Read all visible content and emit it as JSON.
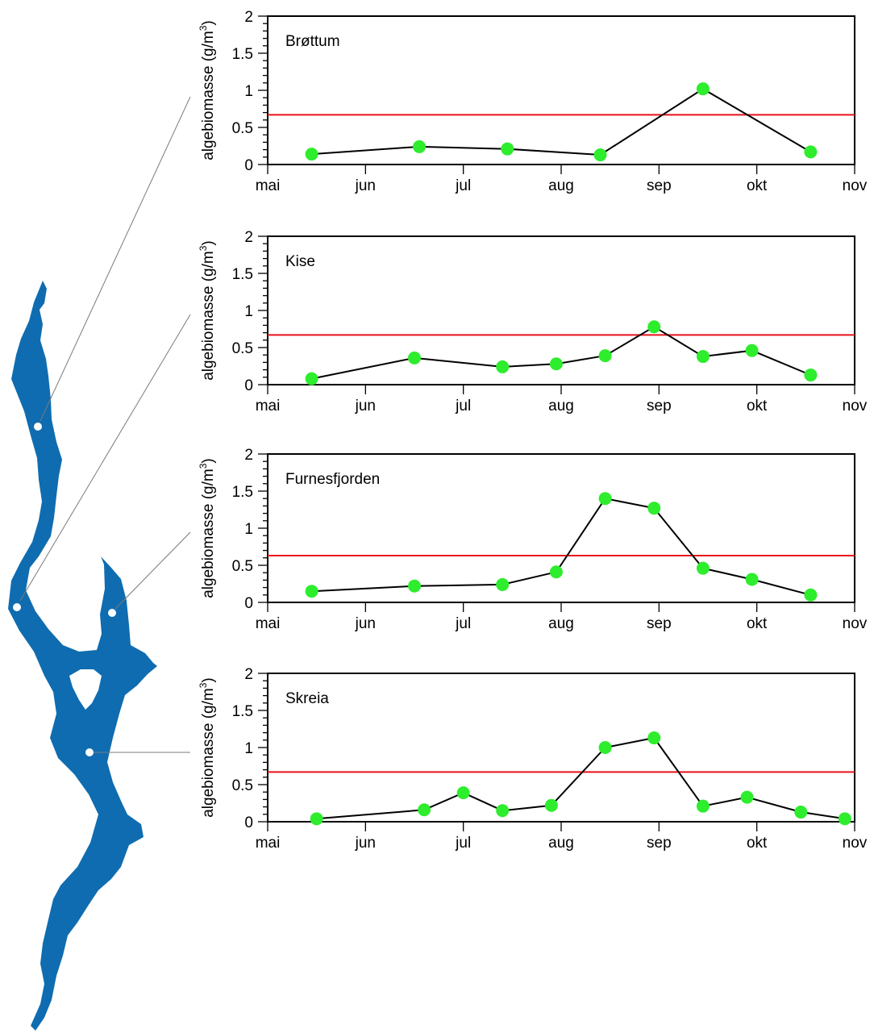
{
  "chart_data": [
    {
      "type": "line",
      "title": "Brøttum",
      "ylabel": "algebiomasse (g/m3)",
      "ylabel_parts": {
        "before": "algebiomasse (g/m",
        "sup": "3",
        "after": ")"
      },
      "xticks": [
        "mai",
        "jun",
        "jul",
        "aug",
        "sep",
        "okt",
        "nov"
      ],
      "xlim": [
        0,
        6
      ],
      "ylim": [
        0,
        2
      ],
      "yticks": [
        "0",
        "0.5",
        "1",
        "1.5",
        "2"
      ],
      "reference_line": 0.67,
      "reference_color": "#e8111b",
      "marker_color": "#2ded2d",
      "series": [
        {
          "x": [
            0.45,
            1.55,
            2.45,
            3.4,
            4.45,
            5.55
          ],
          "y": [
            0.14,
            0.24,
            0.21,
            0.13,
            1.02,
            0.17
          ]
        }
      ]
    },
    {
      "type": "line",
      "title": "Kise",
      "ylabel": "algebiomasse (g/m3)",
      "ylabel_parts": {
        "before": "algebiomasse (g/m",
        "sup": "3",
        "after": ")"
      },
      "xticks": [
        "mai",
        "jun",
        "jul",
        "aug",
        "sep",
        "okt",
        "nov"
      ],
      "xlim": [
        0,
        6
      ],
      "ylim": [
        0,
        2
      ],
      "yticks": [
        "0",
        "0.5",
        "1",
        "1.5",
        "2"
      ],
      "reference_line": 0.67,
      "reference_color": "#e8111b",
      "marker_color": "#2ded2d",
      "series": [
        {
          "x": [
            0.45,
            1.5,
            2.4,
            2.95,
            3.45,
            3.95,
            4.45,
            4.95,
            5.55
          ],
          "y": [
            0.08,
            0.36,
            0.24,
            0.28,
            0.39,
            0.78,
            0.38,
            0.46,
            0.13
          ]
        }
      ]
    },
    {
      "type": "line",
      "title": "Furnesfjorden",
      "ylabel": "algebiomasse (g/m3)",
      "ylabel_parts": {
        "before": "algebiomasse (g/m",
        "sup": "3",
        "after": ")"
      },
      "xticks": [
        "mai",
        "jun",
        "jul",
        "aug",
        "sep",
        "okt",
        "nov"
      ],
      "xlim": [
        0,
        6
      ],
      "ylim": [
        0,
        2
      ],
      "yticks": [
        "0",
        "0.5",
        "1",
        "1.5",
        "2"
      ],
      "reference_line": 0.63,
      "reference_color": "#e8111b",
      "marker_color": "#2ded2d",
      "series": [
        {
          "x": [
            0.45,
            1.5,
            2.4,
            2.95,
            3.45,
            3.95,
            4.45,
            4.95,
            5.55
          ],
          "y": [
            0.15,
            0.22,
            0.24,
            0.41,
            1.4,
            1.27,
            0.46,
            0.31,
            0.1
          ]
        }
      ]
    },
    {
      "type": "line",
      "title": "Skreia",
      "ylabel": "algebiomasse (g/m3)",
      "ylabel_parts": {
        "before": "algebiomasse (g/m",
        "sup": "3",
        "after": ")"
      },
      "xticks": [
        "mai",
        "jun",
        "jul",
        "aug",
        "sep",
        "okt",
        "nov"
      ],
      "xlim": [
        0,
        6
      ],
      "ylim": [
        0,
        2
      ],
      "yticks": [
        "0",
        "0.5",
        "1",
        "1.5",
        "2"
      ],
      "reference_line": 0.67,
      "reference_color": "#e8111b",
      "marker_color": "#2ded2d",
      "series": [
        {
          "x": [
            0.5,
            1.6,
            2.0,
            2.4,
            2.9,
            3.45,
            3.95,
            4.45,
            4.9,
            5.45,
            5.9
          ],
          "y": [
            0.04,
            0.16,
            0.39,
            0.15,
            0.22,
            1.0,
            1.13,
            0.21,
            0.33,
            0.13,
            0.04
          ]
        }
      ]
    }
  ],
  "map": {
    "lake_color": "#0f6cb0",
    "station_dot_color": "#ffffff"
  }
}
